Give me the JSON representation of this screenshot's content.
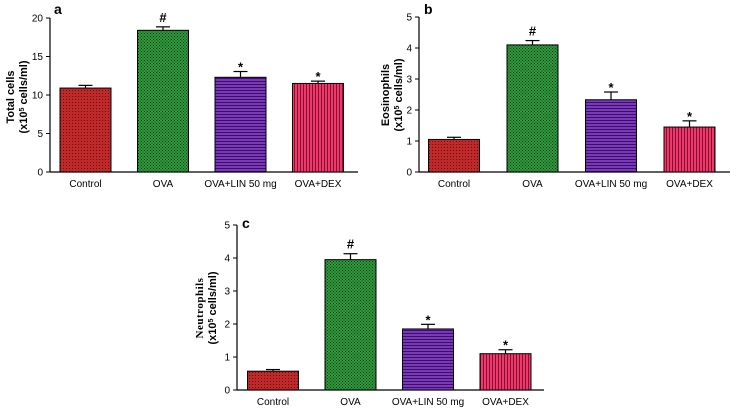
{
  "colors": {
    "control": "#c0282a",
    "ova": "#2e9a3c",
    "lin": "#6a2aa6",
    "dex": "#e0285e",
    "axis": "#000000"
  },
  "chart_data": [
    {
      "panel_label": "a",
      "type": "bar",
      "ylabel_line1": "Total cells",
      "ylabel_line2": "(x10",
      "ylabel_sup": "5",
      "ylabel_line3": " cells/ml)",
      "categories": [
        "Control",
        "OVA",
        "OVA+LIN 50 mg",
        "OVA+DEX"
      ],
      "values": [
        10.9,
        18.4,
        12.3,
        11.5
      ],
      "errors": [
        0.35,
        0.45,
        0.75,
        0.3
      ],
      "significance": [
        "",
        "#",
        "*",
        "*"
      ],
      "ylim": [
        0,
        20
      ],
      "yticks": [
        0,
        5,
        10,
        15,
        20
      ]
    },
    {
      "panel_label": "b",
      "type": "bar",
      "ylabel_line1": "Eosinophils",
      "ylabel_line2": "(x10",
      "ylabel_sup": "5",
      "ylabel_line3": " cells/ml)",
      "categories": [
        "Control",
        "OVA",
        "OVA+LIN 50 mg",
        "OVA+DEX"
      ],
      "values": [
        1.05,
        4.1,
        2.33,
        1.45
      ],
      "errors": [
        0.07,
        0.14,
        0.25,
        0.2
      ],
      "significance": [
        "",
        "#",
        "*",
        "*"
      ],
      "ylim": [
        0,
        5
      ],
      "yticks": [
        0,
        1,
        2,
        3,
        4,
        5
      ]
    },
    {
      "panel_label": "c",
      "type": "bar",
      "ylabel_line1": "Neutrophils",
      "ylabel_line2": "(x10",
      "ylabel_sup": "5",
      "ylabel_line3": " cells/ml)",
      "categories": [
        "Control",
        "OVA",
        "OVA+LIN 50 mg",
        "OVA+DEX"
      ],
      "values": [
        0.57,
        3.95,
        1.85,
        1.1
      ],
      "errors": [
        0.05,
        0.18,
        0.14,
        0.12
      ],
      "significance": [
        "",
        "#",
        "*",
        "*"
      ],
      "ylim": [
        0,
        5
      ],
      "yticks": [
        0,
        1,
        2,
        3,
        4,
        5
      ]
    }
  ]
}
